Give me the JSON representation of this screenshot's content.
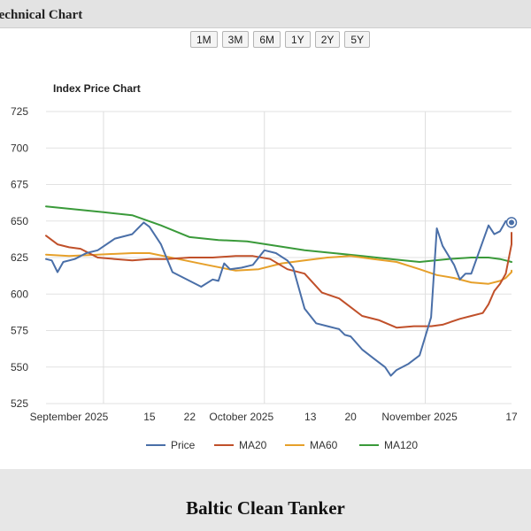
{
  "header": {
    "title": "Technical Chart"
  },
  "ranges": [
    "1M",
    "3M",
    "6M",
    "1Y",
    "2Y",
    "5Y"
  ],
  "footer": {
    "title": "Baltic Clean Tanker"
  },
  "chart_data": {
    "type": "line",
    "title": "Index Price Chart",
    "ylim": [
      525,
      725
    ],
    "yticks": [
      525,
      550,
      575,
      600,
      625,
      650,
      675,
      700,
      725
    ],
    "xlim": [
      "2025-08-28",
      "2025-11-17"
    ],
    "xticks": [
      {
        "date": "2025-09-01",
        "label": "September 2025"
      },
      {
        "date": "2025-09-15",
        "label": "15"
      },
      {
        "date": "2025-09-22",
        "label": "22"
      },
      {
        "date": "2025-10-01",
        "label": "October 2025"
      },
      {
        "date": "2025-10-13",
        "label": "13"
      },
      {
        "date": "2025-10-20",
        "label": "20"
      },
      {
        "date": "2025-11-01",
        "label": "November 2025"
      },
      {
        "date": "2025-11-17",
        "label": "17"
      }
    ],
    "vgrid_dates": [
      "2025-09-07",
      "2025-10-05",
      "2025-11-02"
    ],
    "grid": true,
    "legend_position": "bottom",
    "series": [
      {
        "name": "Price",
        "color": "#4a6fa8",
        "points": [
          [
            "2025-08-28",
            624
          ],
          [
            "2025-08-29",
            623
          ],
          [
            "2025-08-30",
            615
          ],
          [
            "2025-08-31",
            622
          ],
          [
            "2025-09-02",
            624
          ],
          [
            "2025-09-04",
            628
          ],
          [
            "2025-09-06",
            630
          ],
          [
            "2025-09-09",
            638
          ],
          [
            "2025-09-12",
            641
          ],
          [
            "2025-09-14",
            649
          ],
          [
            "2025-09-15",
            646
          ],
          [
            "2025-09-17",
            634
          ],
          [
            "2025-09-19",
            615
          ],
          [
            "2025-09-22",
            609
          ],
          [
            "2025-09-24",
            605
          ],
          [
            "2025-09-26",
            610
          ],
          [
            "2025-09-27",
            609
          ],
          [
            "2025-09-28",
            621
          ],
          [
            "2025-09-29",
            617
          ],
          [
            "2025-10-01",
            618
          ],
          [
            "2025-10-03",
            620
          ],
          [
            "2025-10-05",
            630
          ],
          [
            "2025-10-07",
            628
          ],
          [
            "2025-10-09",
            623
          ],
          [
            "2025-10-10",
            618
          ],
          [
            "2025-10-12",
            590
          ],
          [
            "2025-10-14",
            580
          ],
          [
            "2025-10-16",
            578
          ],
          [
            "2025-10-18",
            576
          ],
          [
            "2025-10-19",
            572
          ],
          [
            "2025-10-20",
            571
          ],
          [
            "2025-10-22",
            562
          ],
          [
            "2025-10-24",
            556
          ],
          [
            "2025-10-26",
            550
          ],
          [
            "2025-10-27",
            544
          ],
          [
            "2025-10-28",
            548
          ],
          [
            "2025-10-30",
            552
          ],
          [
            "2025-11-01",
            558
          ],
          [
            "2025-11-03",
            584
          ],
          [
            "2025-11-04",
            645
          ],
          [
            "2025-11-05",
            633
          ],
          [
            "2025-11-07",
            620
          ],
          [
            "2025-11-08",
            610
          ],
          [
            "2025-11-09",
            614
          ],
          [
            "2025-11-10",
            614
          ],
          [
            "2025-11-11",
            625
          ],
          [
            "2025-11-12",
            636
          ],
          [
            "2025-11-13",
            647
          ],
          [
            "2025-11-14",
            641
          ],
          [
            "2025-11-15",
            643
          ],
          [
            "2025-11-16",
            650
          ],
          [
            "2025-11-17",
            649
          ]
        ]
      },
      {
        "name": "MA20",
        "color": "#c0502a",
        "points": [
          [
            "2025-08-28",
            640
          ],
          [
            "2025-08-30",
            634
          ],
          [
            "2025-09-01",
            632
          ],
          [
            "2025-09-03",
            631
          ],
          [
            "2025-09-06",
            625
          ],
          [
            "2025-09-09",
            624
          ],
          [
            "2025-09-12",
            623
          ],
          [
            "2025-09-15",
            624
          ],
          [
            "2025-09-18",
            624
          ],
          [
            "2025-09-22",
            625
          ],
          [
            "2025-09-26",
            625
          ],
          [
            "2025-09-30",
            626
          ],
          [
            "2025-10-03",
            626
          ],
          [
            "2025-10-06",
            624
          ],
          [
            "2025-10-09",
            617
          ],
          [
            "2025-10-12",
            614
          ],
          [
            "2025-10-15",
            601
          ],
          [
            "2025-10-18",
            597
          ],
          [
            "2025-10-20",
            591
          ],
          [
            "2025-10-22",
            585
          ],
          [
            "2025-10-25",
            582
          ],
          [
            "2025-10-28",
            577
          ],
          [
            "2025-10-31",
            578
          ],
          [
            "2025-11-03",
            578
          ],
          [
            "2025-11-05",
            579
          ],
          [
            "2025-11-08",
            583
          ],
          [
            "2025-11-10",
            585
          ],
          [
            "2025-11-12",
            587
          ],
          [
            "2025-11-13",
            593
          ],
          [
            "2025-11-14",
            602
          ],
          [
            "2025-11-15",
            607
          ],
          [
            "2025-11-16",
            614
          ],
          [
            "2025-11-17",
            634
          ],
          [
            "2025-11-17",
            642
          ]
        ]
      },
      {
        "name": "MA60",
        "color": "#e6a02a",
        "points": [
          [
            "2025-08-28",
            627
          ],
          [
            "2025-09-01",
            626
          ],
          [
            "2025-09-06",
            627
          ],
          [
            "2025-09-12",
            628
          ],
          [
            "2025-09-15",
            628
          ],
          [
            "2025-09-20",
            624
          ],
          [
            "2025-09-25",
            620
          ],
          [
            "2025-09-30",
            616
          ],
          [
            "2025-10-04",
            617
          ],
          [
            "2025-10-08",
            621
          ],
          [
            "2025-10-12",
            623
          ],
          [
            "2025-10-16",
            625
          ],
          [
            "2025-10-20",
            626
          ],
          [
            "2025-10-24",
            624
          ],
          [
            "2025-10-28",
            622
          ],
          [
            "2025-11-01",
            617
          ],
          [
            "2025-11-04",
            613
          ],
          [
            "2025-11-07",
            611
          ],
          [
            "2025-11-10",
            608
          ],
          [
            "2025-11-13",
            607
          ],
          [
            "2025-11-15",
            609
          ],
          [
            "2025-11-16",
            611
          ],
          [
            "2025-11-17",
            615
          ],
          [
            "2025-11-17",
            616
          ]
        ]
      },
      {
        "name": "MA120",
        "color": "#3a9a3a",
        "points": [
          [
            "2025-08-28",
            660
          ],
          [
            "2025-09-02",
            658
          ],
          [
            "2025-09-07",
            656
          ],
          [
            "2025-09-12",
            654
          ],
          [
            "2025-09-17",
            647
          ],
          [
            "2025-09-22",
            639
          ],
          [
            "2025-09-27",
            637
          ],
          [
            "2025-10-02",
            636
          ],
          [
            "2025-10-07",
            633
          ],
          [
            "2025-10-12",
            630
          ],
          [
            "2025-10-17",
            628
          ],
          [
            "2025-10-22",
            626
          ],
          [
            "2025-10-27",
            624
          ],
          [
            "2025-11-01",
            622
          ],
          [
            "2025-11-06",
            624
          ],
          [
            "2025-11-10",
            625
          ],
          [
            "2025-11-13",
            625
          ],
          [
            "2025-11-15",
            624
          ],
          [
            "2025-11-16",
            623
          ],
          [
            "2025-11-17",
            622
          ],
          [
            "2025-11-17",
            622
          ]
        ]
      }
    ]
  }
}
